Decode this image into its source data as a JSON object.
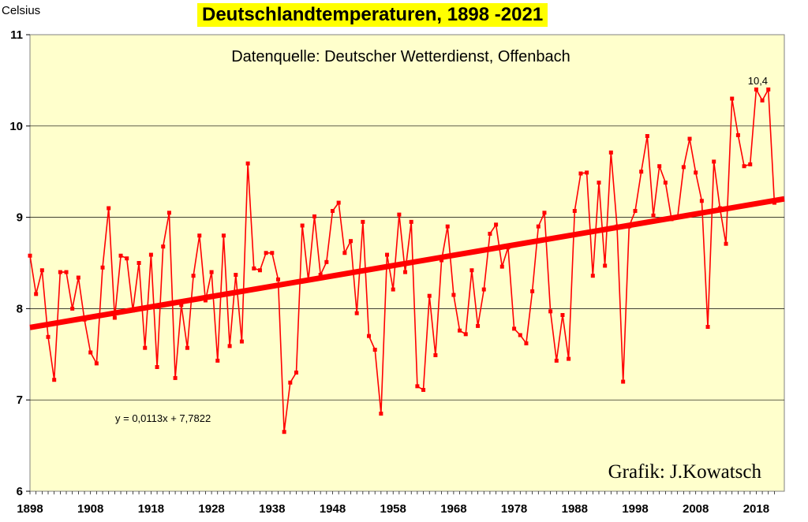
{
  "chart_data": {
    "type": "line",
    "title": "Deutschlandtemperaturen, 1898 -2021",
    "subtitle": "Datenquelle: Deutscher Wetterdienst, Offenbach",
    "ylabel": "Celsius",
    "xlabel": "",
    "credit": "Grafik:  J.Kowatsch",
    "trend_equation": "y = 0,0113x  + 7,7822",
    "annotation": {
      "text": "10,4",
      "x": 2018
    },
    "ylim": [
      6,
      11
    ],
    "xlim": [
      1898,
      2021
    ],
    "yticks": [
      "6",
      "7",
      "8",
      "9",
      "10",
      "11"
    ],
    "xticks": [
      "1898",
      "1908",
      "1918",
      "1928",
      "1938",
      "1948",
      "1958",
      "1968",
      "1978",
      "1988",
      "1998",
      "2008",
      "2018"
    ],
    "grid": true,
    "background": "#ffffcc",
    "line_color": "#ff0000",
    "trend_color": "#ff0000",
    "trend": {
      "slope": 0.0113,
      "intercept": 7.7822
    },
    "series": [
      {
        "x": [
          1898,
          1899,
          1900,
          1901,
          1902,
          1903,
          1904,
          1905,
          1906,
          1907,
          1908,
          1909,
          1910,
          1911,
          1912,
          1913,
          1914,
          1915,
          1916,
          1917,
          1918,
          1919,
          1920,
          1921,
          1922,
          1923,
          1924,
          1925,
          1926,
          1927,
          1928,
          1929,
          1930,
          1931,
          1932,
          1933,
          1934,
          1935,
          1936,
          1937,
          1938,
          1939,
          1940,
          1941,
          1942,
          1943,
          1944,
          1945,
          1946,
          1947,
          1948,
          1949,
          1950,
          1951,
          1952,
          1953,
          1954,
          1955,
          1956,
          1957,
          1958,
          1959,
          1960,
          1961,
          1962,
          1963,
          1964,
          1965,
          1966,
          1967,
          1968,
          1969,
          1970,
          1971,
          1972,
          1973,
          1974,
          1975,
          1976,
          1977,
          1978,
          1979,
          1980,
          1981,
          1982,
          1983,
          1984,
          1985,
          1986,
          1987,
          1988,
          1989,
          1990,
          1991,
          1992,
          1993,
          1994,
          1995,
          1996,
          1997,
          1998,
          1999,
          2000,
          2001,
          2002,
          2003,
          2004,
          2005,
          2006,
          2007,
          2008,
          2009,
          2010,
          2011,
          2012,
          2013,
          2014,
          2015,
          2016,
          2017,
          2018,
          2019,
          2020,
          2021
        ],
        "values": [
          8.58,
          8.16,
          8.42,
          7.69,
          7.22,
          8.4,
          8.4,
          8.0,
          8.34,
          7.88,
          7.52,
          7.4,
          8.45,
          9.1,
          7.9,
          8.58,
          8.55,
          7.98,
          8.5,
          7.57,
          8.59,
          7.36,
          8.68,
          9.05,
          7.24,
          8.04,
          7.57,
          8.36,
          8.8,
          8.09,
          8.4,
          7.43,
          8.8,
          7.59,
          8.37,
          7.64,
          9.59,
          8.44,
          8.42,
          8.61,
          8.61,
          8.32,
          6.65,
          7.19,
          7.3,
          8.91,
          8.31,
          9.01,
          8.37,
          8.51,
          9.07,
          9.16,
          8.61,
          8.74,
          7.95,
          8.95,
          7.7,
          7.55,
          6.85,
          8.59,
          8.21,
          9.03,
          8.4,
          8.95,
          7.15,
          7.11,
          8.14,
          7.49,
          8.53,
          8.9,
          8.15,
          7.76,
          7.72,
          8.42,
          7.81,
          8.21,
          8.82,
          8.92,
          8.46,
          8.67,
          7.78,
          7.71,
          7.62,
          8.19,
          8.9,
          9.05,
          7.97,
          7.43,
          7.93,
          7.45,
          9.07,
          9.48,
          9.49,
          8.36,
          9.38,
          8.47,
          9.71,
          8.9,
          7.2,
          8.9,
          9.07,
          9.5,
          9.89,
          9.02,
          9.56,
          9.38,
          8.98,
          9.0,
          9.55,
          9.86,
          9.49,
          9.18,
          7.8,
          9.61,
          9.1,
          8.71,
          10.3,
          9.9,
          9.56,
          9.58,
          10.4,
          10.28,
          10.4,
          9.16
        ]
      }
    ]
  }
}
